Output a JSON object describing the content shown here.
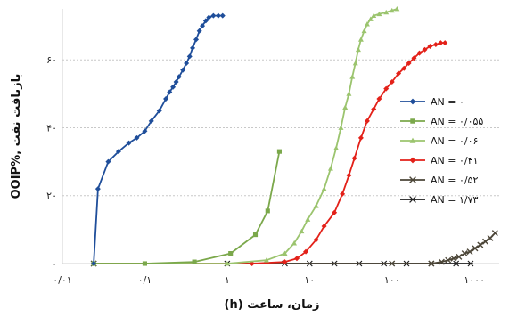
{
  "chart_data": {
    "type": "scatter",
    "xscale": "log",
    "xlim": [
      0.01,
      2000
    ],
    "ylim": [
      0,
      75
    ],
    "grid": "horizontal dashed",
    "legend_position": "right",
    "xlabel": "زمان، ساعت (h)",
    "ylabel": "بازیافت نفت ,%OOIP",
    "x_ticks": [
      {
        "value": 0.01,
        "label": "۰/۰۱"
      },
      {
        "value": 0.1,
        "label": "۰/۱"
      },
      {
        "value": 1,
        "label": "۱"
      },
      {
        "value": 10,
        "label": "۱۰"
      },
      {
        "value": 100,
        "label": "۱۰۰"
      },
      {
        "value": 1000,
        "label": "۱۰۰۰"
      }
    ],
    "y_ticks": [
      {
        "value": 0,
        "label": "۰"
      },
      {
        "value": 20,
        "label": "۲۰"
      },
      {
        "value": 40,
        "label": "۴۰"
      },
      {
        "value": 60,
        "label": "۶۰"
      }
    ],
    "series": [
      {
        "name": "AN = ۰",
        "color": "#1F4E9A",
        "marker": "diamond",
        "x": [
          0.024,
          0.027,
          0.036,
          0.048,
          0.064,
          0.08,
          0.1,
          0.12,
          0.15,
          0.18,
          0.2,
          0.22,
          0.24,
          0.26,
          0.29,
          0.32,
          0.35,
          0.38,
          0.42,
          0.46,
          0.5,
          0.55,
          0.6,
          0.68,
          0.78,
          0.88
        ],
        "y": [
          0,
          22,
          30,
          33,
          35.5,
          37,
          39,
          42,
          45,
          48.5,
          50.5,
          52,
          53.5,
          55,
          57,
          59,
          61,
          63.5,
          66,
          68.5,
          70,
          71.5,
          72.5,
          73,
          73,
          73
        ]
      },
      {
        "name": "AN = ۰/۰۵۵",
        "color": "#7BA84B",
        "marker": "square",
        "x": [
          0.024,
          0.1,
          0.4,
          1.1,
          2.2,
          3.1,
          4.3
        ],
        "y": [
          0,
          0,
          0.5,
          3,
          8.5,
          15.5,
          33
        ]
      },
      {
        "name": "AN = ۰/۰۶",
        "color": "#9BC46E",
        "marker": "triangle",
        "x": [
          0.024,
          1,
          3,
          5,
          6.5,
          8,
          9.5,
          12,
          15,
          18,
          21,
          24,
          27,
          30,
          33,
          36,
          39,
          42,
          46,
          50,
          55,
          60,
          70,
          85,
          100,
          115
        ],
        "y": [
          0,
          0,
          1,
          3,
          6,
          9.5,
          13,
          17,
          22,
          28,
          34,
          40,
          46,
          50,
          55,
          59,
          63,
          66,
          68.5,
          70.5,
          72,
          73,
          73.5,
          74,
          74.5,
          75
        ]
      },
      {
        "name": "AN = ۰/۴۱",
        "color": "#E32119",
        "marker": "diamond",
        "x": [
          0.024,
          2,
          5,
          7,
          9,
          12,
          15,
          20,
          25,
          30,
          35,
          42,
          50,
          60,
          70,
          85,
          100,
          120,
          140,
          160,
          185,
          215,
          250,
          290,
          340,
          390,
          440
        ],
        "y": [
          0,
          0,
          0.5,
          1.5,
          3.5,
          7,
          11,
          15,
          20.5,
          26,
          31,
          37,
          42,
          45.5,
          48.5,
          51.5,
          53.5,
          56,
          57.5,
          59,
          60.5,
          62,
          63,
          64,
          64.5,
          65,
          65
        ]
      },
      {
        "name": "AN = ۰/۵۲",
        "color": "#4C4638",
        "marker": "x",
        "x": [
          0.024,
          100,
          300,
          400,
          480,
          560,
          650,
          760,
          880,
          1020,
          1180,
          1360,
          1560,
          1780
        ],
        "y": [
          0,
          0,
          0,
          0.5,
          1,
          1.5,
          2,
          3,
          3.5,
          4.5,
          5.5,
          6.5,
          7.5,
          9
        ]
      },
      {
        "name": "AN = ۱/۷۳",
        "color": "#1E1E1E",
        "marker": "star",
        "x": [
          0.024,
          1,
          5,
          10,
          20,
          40,
          80,
          150,
          300,
          600,
          900
        ],
        "y": [
          0,
          0,
          0,
          0,
          0,
          0,
          0,
          0,
          0,
          0,
          0
        ]
      }
    ]
  }
}
